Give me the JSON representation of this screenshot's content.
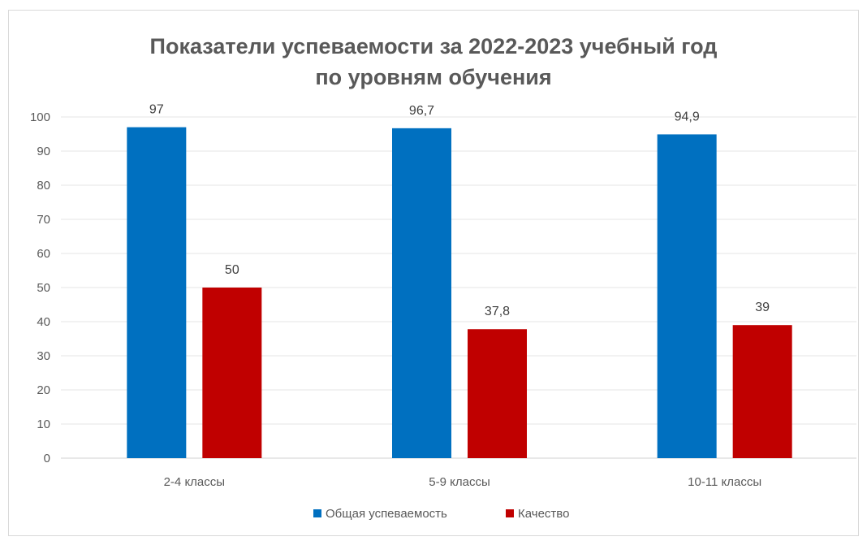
{
  "chart_data": {
    "type": "bar",
    "title": [
      "Показатели успеваемости за 2022-2023 учебный год",
      "по уровням обучения"
    ],
    "categories": [
      "2-4 классы",
      "5-9 классы",
      "10-11 классы"
    ],
    "series": [
      {
        "name": "Общая успеваемость",
        "values": [
          97,
          96.7,
          94.9
        ],
        "labels": [
          "97",
          "96,7",
          "94,9"
        ],
        "color": "#0070c0"
      },
      {
        "name": "Качество",
        "values": [
          50,
          37.8,
          39
        ],
        "labels": [
          "50",
          "37,8",
          "39"
        ],
        "color": "#c00000"
      }
    ],
    "ylim": [
      0,
      100
    ],
    "yticks": [
      "0",
      "10",
      "20",
      "30",
      "40",
      "50",
      "60",
      "70",
      "80",
      "90",
      "100"
    ],
    "grid": true,
    "legend": "bottom"
  }
}
